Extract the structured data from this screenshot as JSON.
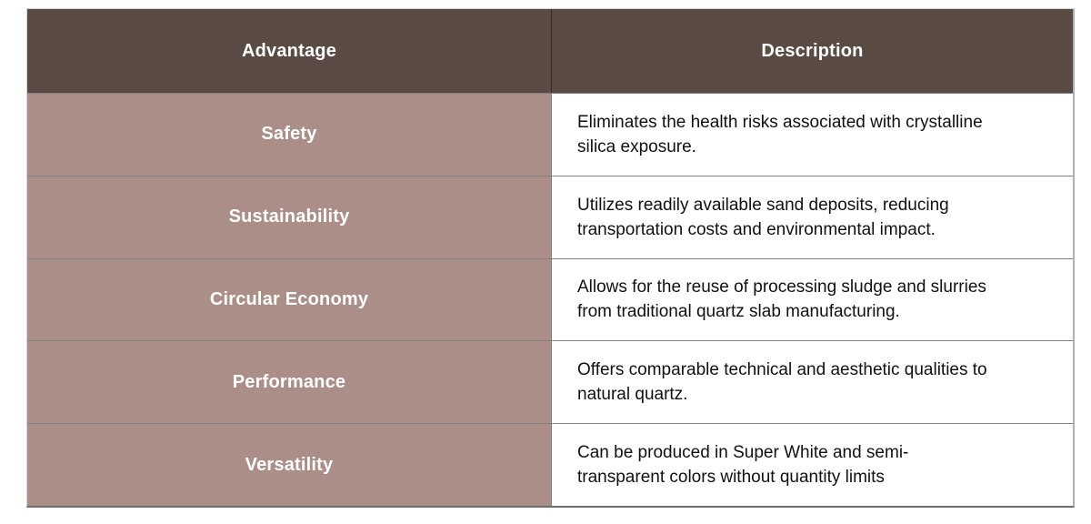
{
  "table": {
    "columns": [
      {
        "label": "Advantage"
      },
      {
        "label": "Description"
      }
    ],
    "rows": [
      {
        "advantage": "Safety",
        "description": "Eliminates the health risks associated with crystalline\nsilica exposure."
      },
      {
        "advantage": "Sustainability",
        "description": "Utilizes readily available sand deposits, reducing\ntransportation costs and environmental impact."
      },
      {
        "advantage": "Circular Economy",
        "description": "Allows for the reuse of processing sludge and slurries\nfrom traditional quartz slab manufacturing."
      },
      {
        "advantage": "Performance",
        "description": "Offers comparable technical and aesthetic qualities to\nnatural quartz."
      },
      {
        "advantage": "Versatility",
        "description": "Can be produced in Super White and semi-\ntransparent colors without quantity limits"
      }
    ]
  },
  "colors": {
    "header_bg": "#5a4a44",
    "advantage_bg": "#ab8e87",
    "description_bg": "#ffffff",
    "header_text": "#ffffff",
    "advantage_text": "#ffffff",
    "description_text": "#111111",
    "grid_line": "#808080",
    "header_divider": "#342b26"
  }
}
